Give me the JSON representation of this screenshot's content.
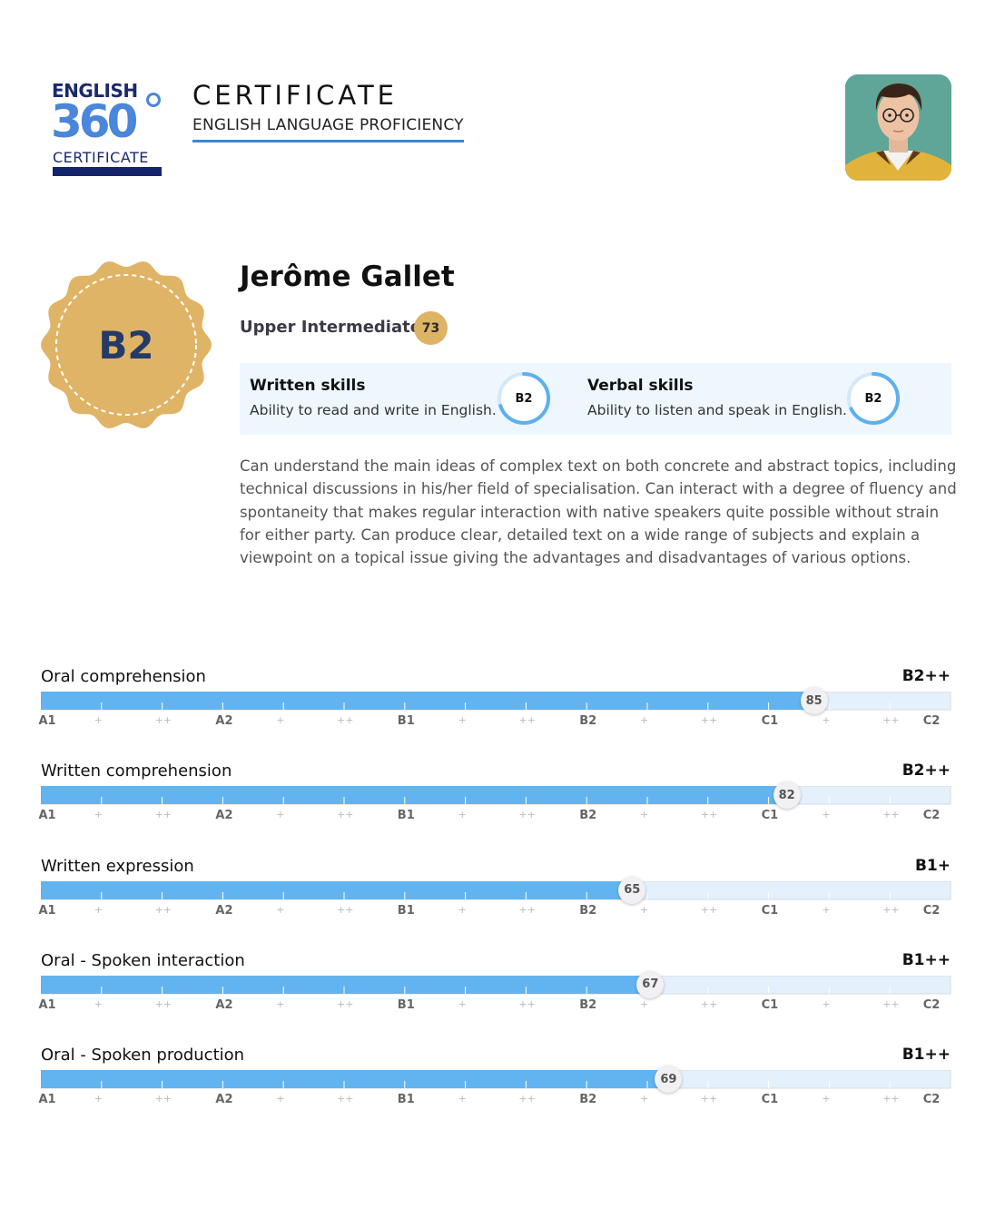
{
  "header": {
    "logo": {
      "line1": "ENGLISH",
      "number": "360",
      "line2": "CERTIFICATE"
    },
    "title": "CERTIFICATE",
    "subtitle": "ENGLISH LANGUAGE PROFICIENCY"
  },
  "candidate": {
    "name": "Jerôme Gallet",
    "level_code": "B2",
    "level_name": "Upper Intermediate",
    "score": "73"
  },
  "skills": [
    {
      "title": "Written skills",
      "description": "Ability to read and write in English.",
      "level": "B2",
      "progress_pct": 70
    },
    {
      "title": "Verbal skills",
      "description": "Ability to listen and speak in English.",
      "level": "B2",
      "progress_pct": 68
    }
  ],
  "description": "Can understand the main ideas of complex text on both concrete and abstract topics, including technical discussions in his/her field of specialisation. Can interact with a degree of fluency and spontaneity that makes regular interaction with native speakers quite possible without strain for either party. Can produce clear, detailed text on a wide range of subjects and explain a viewpoint on a topical issue giving the advantages and disadvantages of various options.",
  "scale": [
    "A1",
    "+",
    "++",
    "A2",
    "+",
    "++",
    "B1",
    "+",
    "++",
    "B2",
    "+",
    "++",
    "C1",
    "+",
    "++",
    "C2"
  ],
  "chart_data": {
    "type": "bar",
    "orientation": "horizontal",
    "xlim": [
      0,
      100
    ],
    "categories": [
      "Oral comprehension",
      "Written comprehension",
      "Written expression",
      "Oral - Spoken interaction",
      "Oral - Spoken production"
    ],
    "values": [
      85,
      82,
      65,
      67,
      69
    ],
    "levels": [
      "B2++",
      "B2++",
      "B1+",
      "B1++",
      "B1++"
    ],
    "tick_labels": [
      "A1",
      "+",
      "++",
      "A2",
      "+",
      "++",
      "B1",
      "+",
      "++",
      "B2",
      "+",
      "++",
      "C1",
      "+",
      "++",
      "C2"
    ]
  },
  "colors": {
    "bar_fill": "#62b4f0",
    "bar_track": "#e4f0fc",
    "badge": "#dfb466",
    "accent_blue": "#3b86d6"
  }
}
